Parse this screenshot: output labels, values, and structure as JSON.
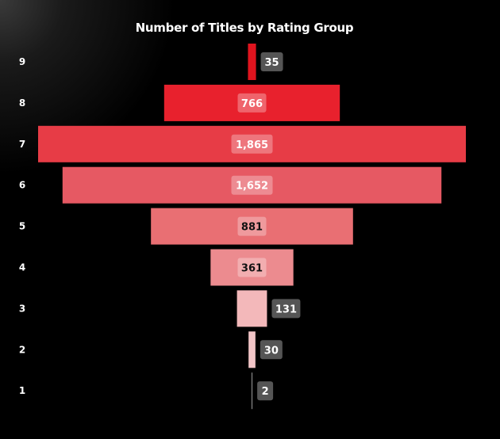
{
  "chart_data": {
    "type": "funnel",
    "title": "Number of Titles by Rating Group",
    "categories": [
      "9",
      "8",
      "7",
      "6",
      "5",
      "4",
      "3",
      "2",
      "1"
    ],
    "values": [
      35,
      766,
      1865,
      1652,
      881,
      361,
      131,
      30,
      2
    ],
    "value_labels": [
      "35",
      "766",
      "1,865",
      "1,652",
      "881",
      "361",
      "131",
      "30",
      "2"
    ],
    "colors": [
      "#e0141e",
      "#e8212d",
      "#e73c46",
      "#e65963",
      "#e96f73",
      "#ec8b8f",
      "#f3b8ba",
      "#f2c5c7",
      "#888888"
    ],
    "grid": false,
    "legend": "none"
  }
}
